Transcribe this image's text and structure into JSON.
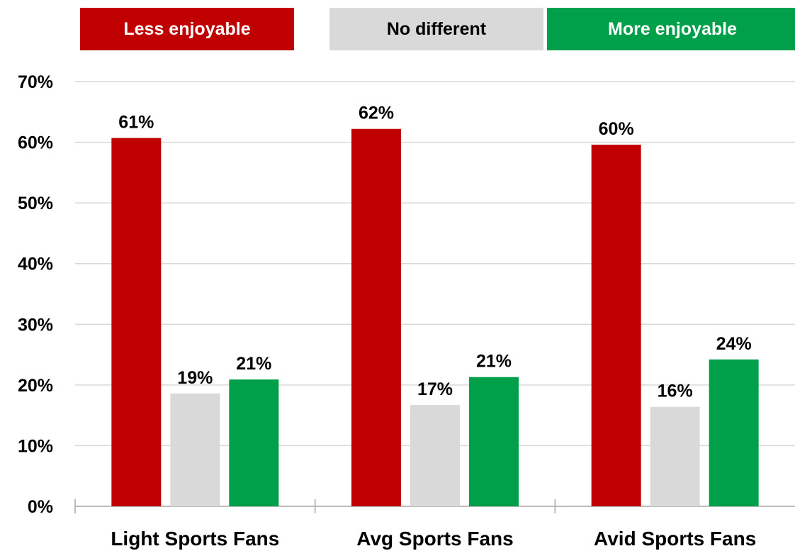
{
  "chart_data": {
    "type": "bar",
    "title": "",
    "xlabel": "",
    "ylabel": "",
    "categories": [
      "Light Sports Fans",
      "Avg Sports Fans",
      "Avid Sports Fans"
    ],
    "series": [
      {
        "name": "Less enjoyable",
        "color": "#c00000",
        "values": [
          61,
          62,
          60
        ],
        "plot_values": [
          60.7,
          62.2,
          59.6
        ]
      },
      {
        "name": "No different",
        "color": "#d9d9d9",
        "values": [
          19,
          17,
          16
        ],
        "plot_values": [
          18.6,
          16.7,
          16.4
        ]
      },
      {
        "name": "More enjoyable",
        "color": "#00a04a",
        "values": [
          21,
          21,
          24
        ],
        "plot_values": [
          20.9,
          21.3,
          24.2
        ]
      }
    ],
    "ylim": [
      0,
      70
    ],
    "y_ticks": [
      0,
      10,
      20,
      30,
      40,
      50,
      60,
      70
    ],
    "y_tick_labels": [
      "0%",
      "10%",
      "20%",
      "30%",
      "40%",
      "50%",
      "60%",
      "70%"
    ],
    "value_suffix": "%",
    "grid": true,
    "legend_position": "top"
  }
}
